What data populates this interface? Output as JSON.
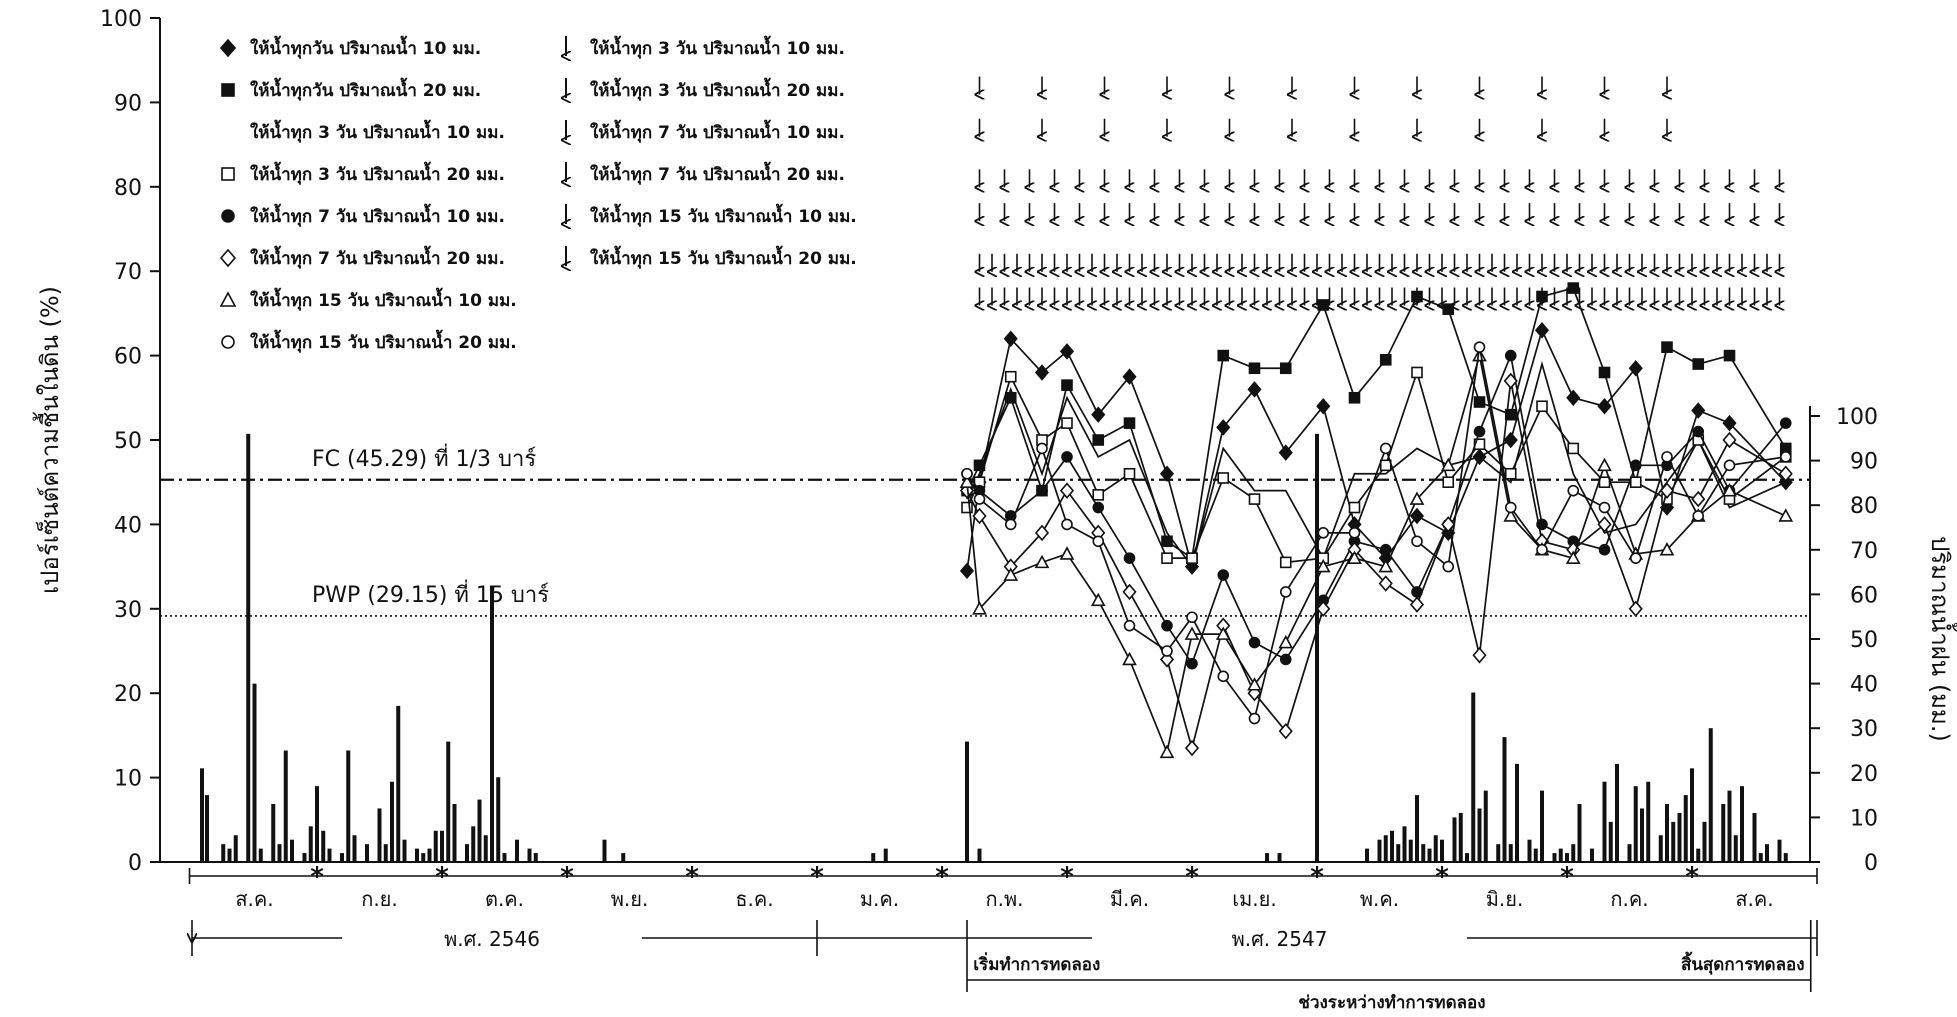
{
  "chart_data": {
    "type": "line",
    "ylabel_left": "เปอร์เซ็นต์ความชื้นในดิน (%)",
    "ylabel_right": "ปริมาณน้ำฝน (มม.)",
    "ylim_left": [
      0,
      100
    ],
    "yticks_left": [
      "0",
      "10",
      "20",
      "30",
      "40",
      "50",
      "60",
      "70",
      "80",
      "90",
      "100"
    ],
    "ylim_right": [
      0,
      100
    ],
    "yticks_right": [
      "0",
      "10",
      "20",
      "30",
      "40",
      "50",
      "60",
      "70",
      "80",
      "90",
      "100"
    ],
    "months": [
      "ส.ค.",
      "ก.ย.",
      "ต.ค.",
      "พ.ย.",
      "ธ.ค.",
      "ม.ค.",
      "ก.พ.",
      "มี.ค.",
      "เม.ย.",
      "พ.ค.",
      "มิ.ย.",
      "ก.ค.",
      "ส.ค."
    ],
    "year_labels": [
      "พ.ศ. 2546",
      "พ.ศ. 2547"
    ],
    "experiment_start": "เริ่มทำการทดลอง",
    "experiment_end": "สิ้นสุดการทดลอง",
    "experiment_period": "ช่วงระหว่างทำการทดลอง",
    "reference_lines": [
      {
        "label": "FC (45.29) ที่ 1/3 บาร์",
        "value": 45.29,
        "style": "dashdot"
      },
      {
        "label": "PWP (29.15) ที่ 15 บาร์",
        "value": 29.15,
        "style": "dotted"
      }
    ],
    "legend": {
      "markers": [
        {
          "marker": "diamond-filled",
          "label": "ให้น้ำทุกวัน  ปริมาณน้ำ 10 มม."
        },
        {
          "marker": "square-filled",
          "label": "ให้น้ำทุกวัน  ปริมาณน้ำ 20 มม."
        },
        {
          "marker": "none",
          "label": "ให้น้ำทุก 3 วัน  ปริมาณน้ำ 10 มม."
        },
        {
          "marker": "square-open",
          "label": "ให้น้ำทุก 3 วัน  ปริมาณน้ำ 20 มม."
        },
        {
          "marker": "circle-filled",
          "label": "ให้น้ำทุก 7 วัน  ปริมาณน้ำ 10 มม."
        },
        {
          "marker": "diamond-open",
          "label": "ให้น้ำทุก 7 วัน  ปริมาณน้ำ 20 มม."
        },
        {
          "marker": "triangle-open",
          "label": "ให้น้ำทุก 15 วัน  ปริมาณน้ำ 10 มม."
        },
        {
          "marker": "circle-open",
          "label": "ให้น้ำทุก 15 วัน  ปริมาณน้ำ 20 มม."
        }
      ],
      "arrows": [
        {
          "label": "ให้น้ำทุก 3 วัน  ปริมาณน้ำ 10 มม."
        },
        {
          "label": "ให้น้ำทุก 3 วัน  ปริมาณน้ำ 20 มม."
        },
        {
          "label": "ให้น้ำทุก 7 วัน  ปริมาณน้ำ 10 มม."
        },
        {
          "label": "ให้น้ำทุก 7 วัน  ปริมาณน้ำ 20 มม."
        },
        {
          "label": "ให้น้ำทุก 15 วัน  ปริมาณน้ำ 10 มม."
        },
        {
          "label": "ให้น้ำทุก 15 วัน  ปริมาณน้ำ 20 มม."
        }
      ]
    },
    "irrigation_arrow_rows": [
      {
        "y": 92,
        "x": [
          6.3,
          6.8,
          7.3,
          7.8,
          8.3,
          8.8,
          9.3,
          9.8,
          10.3,
          10.8,
          11.3,
          11.8
        ]
      },
      {
        "y": 87,
        "x": [
          6.3,
          6.8,
          7.3,
          7.8,
          8.3,
          8.8,
          9.3,
          9.8,
          10.3,
          10.8,
          11.3,
          11.8
        ]
      },
      {
        "y": 81,
        "x": [
          6.3,
          6.5,
          6.7,
          6.9,
          7.1,
          7.3,
          7.5,
          7.7,
          7.9,
          8.1,
          8.3,
          8.5,
          8.7,
          8.9,
          9.1,
          9.3,
          9.5,
          9.7,
          9.9,
          10.1,
          10.3,
          10.5,
          10.7,
          10.9,
          11.1,
          11.3,
          11.5,
          11.7,
          11.9,
          12.1,
          12.3,
          12.5,
          12.7
        ]
      },
      {
        "y": 77,
        "x": [
          6.3,
          6.5,
          6.7,
          6.9,
          7.1,
          7.3,
          7.5,
          7.7,
          7.9,
          8.1,
          8.3,
          8.5,
          8.7,
          8.9,
          9.1,
          9.3,
          9.5,
          9.7,
          9.9,
          10.1,
          10.3,
          10.5,
          10.7,
          10.9,
          11.1,
          11.3,
          11.5,
          11.7,
          11.9,
          12.1,
          12.3,
          12.5,
          12.7
        ]
      },
      {
        "y": 71,
        "x": [
          6.3,
          6.4,
          6.5,
          6.6,
          6.7,
          6.8,
          6.9,
          7.0,
          7.1,
          7.2,
          7.3,
          7.4,
          7.5,
          7.6,
          7.7,
          7.8,
          7.9,
          8.0,
          8.1,
          8.2,
          8.3,
          8.4,
          8.5,
          8.6,
          8.7,
          8.8,
          8.9,
          9.0,
          9.1,
          9.2,
          9.3,
          9.4,
          9.5,
          9.6,
          9.7,
          9.8,
          9.9,
          10.0,
          10.1,
          10.2,
          10.3,
          10.4,
          10.5,
          10.6,
          10.7,
          10.8,
          10.9,
          11.0,
          11.1,
          11.2,
          11.3,
          11.4,
          11.5,
          11.6,
          11.7,
          11.8,
          11.9,
          12.0,
          12.1,
          12.2,
          12.3,
          12.4,
          12.5,
          12.6,
          12.7
        ]
      },
      {
        "y": 67,
        "x": [
          6.3,
          6.4,
          6.5,
          6.6,
          6.7,
          6.8,
          6.9,
          7.0,
          7.1,
          7.2,
          7.3,
          7.4,
          7.5,
          7.6,
          7.7,
          7.8,
          7.9,
          8.0,
          8.1,
          8.2,
          8.3,
          8.4,
          8.5,
          8.6,
          8.7,
          8.8,
          8.9,
          9.0,
          9.1,
          9.2,
          9.3,
          9.4,
          9.5,
          9.6,
          9.7,
          9.8,
          9.9,
          10.0,
          10.1,
          10.2,
          10.3,
          10.4,
          10.5,
          10.6,
          10.7,
          10.8,
          10.9,
          11.0,
          11.1,
          11.2,
          11.3,
          11.4,
          11.5,
          11.6,
          11.7,
          11.8,
          11.9,
          12.0,
          12.1,
          12.2,
          12.3,
          12.4,
          12.5,
          12.6,
          12.7
        ]
      }
    ],
    "series": [
      {
        "name": "ให้น้ำทุกวัน  ปริมาณน้ำ 10 มม.",
        "marker": "diamond-filled",
        "x": [
          6.2,
          6.3,
          6.55,
          6.8,
          7.0,
          7.25,
          7.5,
          7.8,
          8.0,
          8.25,
          8.5,
          8.75,
          9.05,
          9.3,
          9.55,
          9.8,
          10.05,
          10.3,
          10.55,
          10.8,
          11.05,
          11.3,
          11.55,
          11.8,
          12.05,
          12.3,
          12.75
        ],
        "y": [
          34.5,
          45,
          62,
          58,
          60.5,
          53,
          57.5,
          46,
          35,
          51.5,
          56,
          48.5,
          54,
          40,
          36,
          41,
          39,
          48,
          50,
          63,
          55,
          54,
          58.5,
          42,
          53.5,
          52,
          45
        ]
      },
      {
        "name": "ให้น้ำทุกวัน  ปริมาณน้ำ 20 มม.",
        "marker": "square-filled",
        "x": [
          6.2,
          6.3,
          6.55,
          6.8,
          7.0,
          7.25,
          7.5,
          7.8,
          8.0,
          8.25,
          8.5,
          8.75,
          9.05,
          9.3,
          9.55,
          9.8,
          10.05,
          10.3,
          10.55,
          10.8,
          11.05,
          11.3,
          11.55,
          11.8,
          12.05,
          12.3,
          12.75
        ],
        "y": [
          44,
          47,
          55,
          44,
          56.5,
          50,
          52,
          38,
          36,
          60,
          58.5,
          58.5,
          66,
          55,
          59.5,
          67,
          65.5,
          54.5,
          53,
          67,
          68,
          58,
          45,
          61,
          59,
          60,
          49
        ]
      },
      {
        "name": "ให้น้ำทุก 3 วัน  ปริมาณน้ำ 10 มม.",
        "marker": "none",
        "x": [
          6.2,
          6.3,
          6.55,
          6.8,
          7.0,
          7.25,
          7.5,
          7.8,
          8.0,
          8.25,
          8.5,
          8.75,
          9.05,
          9.3,
          9.55,
          9.8,
          10.05,
          10.3,
          10.55,
          10.8,
          11.05,
          11.3,
          11.55,
          11.8,
          12.05,
          12.3,
          12.75
        ],
        "y": [
          43,
          46,
          56,
          46,
          55,
          48,
          50,
          39,
          35,
          49,
          44,
          44,
          36,
          46,
          46,
          49,
          47,
          48,
          45,
          59,
          46,
          39,
          40,
          45,
          50,
          42,
          45
        ]
      },
      {
        "name": "ให้น้ำทุก 3 วัน  ปริมาณน้ำ 20 มม.",
        "marker": "square-open",
        "x": [
          6.2,
          6.3,
          6.55,
          6.8,
          7.0,
          7.25,
          7.5,
          7.8,
          8.0,
          8.25,
          8.5,
          8.75,
          9.05,
          9.3,
          9.55,
          9.8,
          10.05,
          10.3,
          10.55,
          10.8,
          11.05,
          11.3,
          11.55,
          11.8,
          12.05,
          12.3,
          12.75
        ],
        "y": [
          42,
          45,
          57.5,
          50,
          52,
          43.5,
          46,
          36,
          36,
          45.5,
          43,
          35.5,
          36,
          42,
          47,
          58,
          45,
          49.5,
          46,
          54,
          49,
          45,
          45,
          43,
          50,
          43,
          48
        ]
      },
      {
        "name": "ให้น้ำทุก 7 วัน  ปริมาณน้ำ 10 มม.",
        "marker": "circle-filled",
        "x": [
          6.2,
          6.3,
          6.55,
          6.8,
          7.0,
          7.25,
          7.5,
          7.8,
          8.0,
          8.25,
          8.5,
          8.75,
          9.05,
          9.3,
          9.55,
          9.8,
          10.05,
          10.3,
          10.55,
          10.8,
          11.05,
          11.3,
          11.55,
          11.8,
          12.05,
          12.3,
          12.75
        ],
        "y": [
          46,
          44,
          41,
          44,
          48,
          42,
          36,
          28,
          23.5,
          34,
          26,
          24,
          31,
          38,
          37,
          32,
          40,
          51,
          60,
          40,
          38,
          37,
          47,
          47,
          51,
          44,
          52
        ]
      },
      {
        "name": "ให้น้ำทุก 7 วัน  ปริมาณน้ำ 20 มม.",
        "marker": "diamond-open",
        "x": [
          6.2,
          6.3,
          6.55,
          6.8,
          7.0,
          7.25,
          7.5,
          7.8,
          8.0,
          8.25,
          8.5,
          8.75,
          9.05,
          9.3,
          9.55,
          9.8,
          10.05,
          10.3,
          10.55,
          10.8,
          11.05,
          11.3,
          11.55,
          11.8,
          12.05,
          12.3,
          12.75
        ],
        "y": [
          44,
          41,
          35,
          39,
          44,
          39,
          32,
          24,
          13.5,
          28,
          20,
          15.5,
          30,
          37,
          33,
          30.5,
          40,
          24.5,
          57,
          38,
          37,
          40,
          30,
          44,
          43,
          50,
          46
        ]
      },
      {
        "name": "ให้น้ำทุก 15 วัน  ปริมาณน้ำ 10 มม.",
        "marker": "triangle-open",
        "x": [
          6.2,
          6.3,
          6.55,
          6.8,
          7.0,
          7.25,
          7.5,
          7.8,
          8.0,
          8.25,
          8.5,
          8.75,
          9.05,
          9.3,
          9.55,
          9.8,
          10.05,
          10.3,
          10.55,
          10.8,
          11.05,
          11.3,
          11.55,
          11.8,
          12.05,
          12.3,
          12.75
        ],
        "y": [
          45,
          30,
          34,
          35.5,
          36.5,
          31,
          24,
          13,
          27,
          27,
          21,
          26,
          35,
          36,
          35,
          43,
          47,
          60,
          41,
          37,
          36,
          47,
          36.5,
          37,
          41,
          44,
          41
        ]
      },
      {
        "name": "ให้น้ำทุก 15 วัน  ปริมาณน้ำ 20 มม.",
        "marker": "circle-open",
        "x": [
          6.2,
          6.3,
          6.55,
          6.8,
          7.0,
          7.25,
          7.5,
          7.8,
          8.0,
          8.25,
          8.5,
          8.75,
          9.05,
          9.3,
          9.55,
          9.8,
          10.05,
          10.3,
          10.55,
          10.8,
          11.05,
          11.3,
          11.55,
          11.8,
          12.05,
          12.3,
          12.75
        ],
        "y": [
          46,
          43,
          40,
          49,
          40,
          38,
          28,
          25,
          29,
          22,
          17,
          32,
          39,
          39,
          49,
          38,
          35,
          61,
          42,
          37,
          44,
          42,
          36,
          48,
          41,
          47,
          48
        ]
      }
    ],
    "rainfall": {
      "unit": "มม.",
      "x": [
        0.08,
        0.12,
        0.25,
        0.3,
        0.35,
        0.45,
        0.5,
        0.55,
        0.65,
        0.7,
        0.75,
        0.8,
        0.9,
        0.95,
        1.0,
        1.05,
        1.1,
        1.2,
        1.25,
        1.3,
        1.4,
        1.5,
        1.55,
        1.6,
        1.65,
        1.7,
        1.8,
        1.85,
        1.9,
        1.95,
        2.0,
        2.05,
        2.1,
        2.2,
        2.25,
        2.3,
        2.35,
        2.4,
        2.45,
        2.5,
        2.6,
        2.7,
        2.75,
        3.3,
        3.45,
        5.45,
        5.55,
        6.2,
        6.3,
        8.6,
        8.7,
        9.0,
        9.4,
        9.5,
        9.55,
        9.6,
        9.65,
        9.7,
        9.75,
        9.8,
        9.85,
        9.9,
        9.95,
        10.0,
        10.1,
        10.15,
        10.2,
        10.25,
        10.3,
        10.35,
        10.45,
        10.5,
        10.55,
        10.6,
        10.7,
        10.75,
        10.8,
        10.9,
        10.95,
        11.0,
        11.05,
        11.1,
        11.2,
        11.3,
        11.35,
        11.4,
        11.5,
        11.55,
        11.6,
        11.65,
        11.75,
        11.8,
        11.85,
        11.9,
        11.95,
        12.0,
        12.05,
        12.1,
        12.15,
        12.25,
        12.3,
        12.35,
        12.4,
        12.5,
        12.55,
        12.6,
        12.7,
        12.75
      ],
      "values": [
        21,
        15,
        4,
        3,
        6,
        96,
        40,
        3,
        13,
        4,
        25,
        5,
        2,
        8,
        17,
        7,
        3,
        2,
        25,
        6,
        4,
        12,
        4,
        18,
        35,
        5,
        3,
        2,
        3,
        7,
        7,
        27,
        13,
        4,
        8,
        14,
        6,
        62,
        19,
        2,
        5,
        3,
        2,
        5,
        2,
        2,
        3,
        27,
        3,
        2,
        2,
        96,
        3,
        5,
        6,
        7,
        4,
        8,
        5,
        15,
        4,
        3,
        6,
        5,
        10,
        11,
        2,
        38,
        12,
        16,
        4,
        28,
        4,
        22,
        5,
        3,
        16,
        2,
        3,
        2,
        4,
        13,
        3,
        18,
        9,
        22,
        4,
        17,
        12,
        18,
        6,
        13,
        9,
        11,
        15,
        21,
        3,
        9,
        30,
        13,
        16,
        6,
        17,
        11,
        2,
        4,
        5,
        2
      ]
    }
  }
}
